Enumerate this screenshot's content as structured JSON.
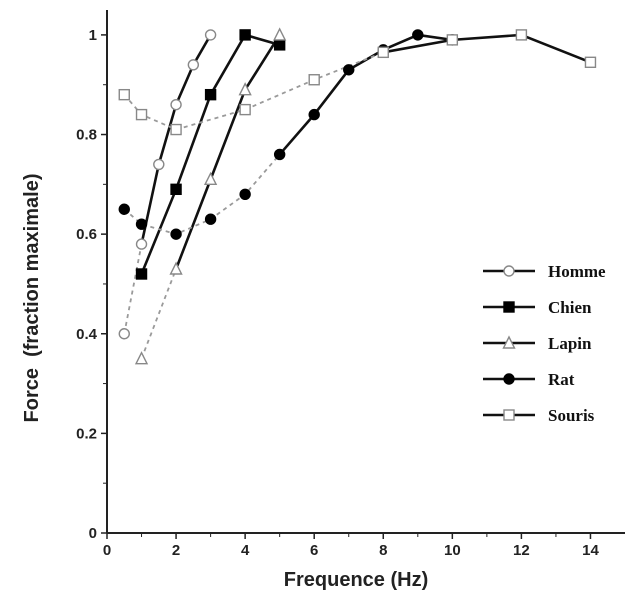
{
  "chart_data": {
    "type": "line",
    "xlabel": "Frequence (Hz)",
    "ylabel": "Force  (fraction maximale)",
    "xlim": [
      0,
      15
    ],
    "ylim": [
      0,
      1.05
    ],
    "xticks": [
      0,
      2,
      4,
      6,
      8,
      10,
      12,
      14
    ],
    "yticks": [
      0,
      0.2,
      0.4,
      0.6,
      0.8,
      1
    ],
    "ytick_labels": [
      "0",
      "0.2",
      "0.4",
      "0.6",
      "0.8",
      "1"
    ],
    "grid": false,
    "legend_position": "right",
    "series": [
      {
        "name": "Homme",
        "marker": "open-circle",
        "color": "#888888",
        "dashed": {
          "x": [
            0.5,
            1
          ],
          "y": [
            0.4,
            0.58
          ]
        },
        "solid": {
          "x": [
            1,
            1.5,
            2,
            2.5,
            3
          ],
          "y": [
            0.58,
            0.74,
            0.86,
            0.94,
            1.0
          ]
        }
      },
      {
        "name": "Chien",
        "marker": "filled-square",
        "color": "#000000",
        "solid": {
          "x": [
            1,
            2,
            3,
            4,
            5
          ],
          "y": [
            0.52,
            0.69,
            0.88,
            1.0,
            0.98
          ]
        }
      },
      {
        "name": "Lapin",
        "marker": "open-triangle",
        "color": "#888888",
        "dashed": {
          "x": [
            1,
            2
          ],
          "y": [
            0.35,
            0.53
          ]
        },
        "solid": {
          "x": [
            2,
            3,
            4,
            5
          ],
          "y": [
            0.53,
            0.71,
            0.89,
            1.0
          ]
        }
      },
      {
        "name": "Rat",
        "marker": "filled-circle",
        "color": "#000000",
        "dashed": {
          "x": [
            0.5,
            1,
            2,
            3,
            4,
            5
          ],
          "y": [
            0.65,
            0.62,
            0.6,
            0.63,
            0.68,
            0.76
          ]
        },
        "solid": {
          "x": [
            5,
            6,
            7,
            8,
            9,
            10
          ],
          "y": [
            0.76,
            0.84,
            0.93,
            0.97,
            1.0,
            0.99
          ]
        }
      },
      {
        "name": "Souris",
        "marker": "open-square",
        "color": "#888888",
        "dashed": {
          "x": [
            0.5,
            1,
            2,
            4,
            6,
            8
          ],
          "y": [
            0.88,
            0.84,
            0.81,
            0.85,
            0.91,
            0.965
          ]
        },
        "solid": {
          "x": [
            8,
            10,
            12,
            14
          ],
          "y": [
            0.965,
            0.99,
            1.0,
            0.945
          ]
        }
      }
    ]
  }
}
